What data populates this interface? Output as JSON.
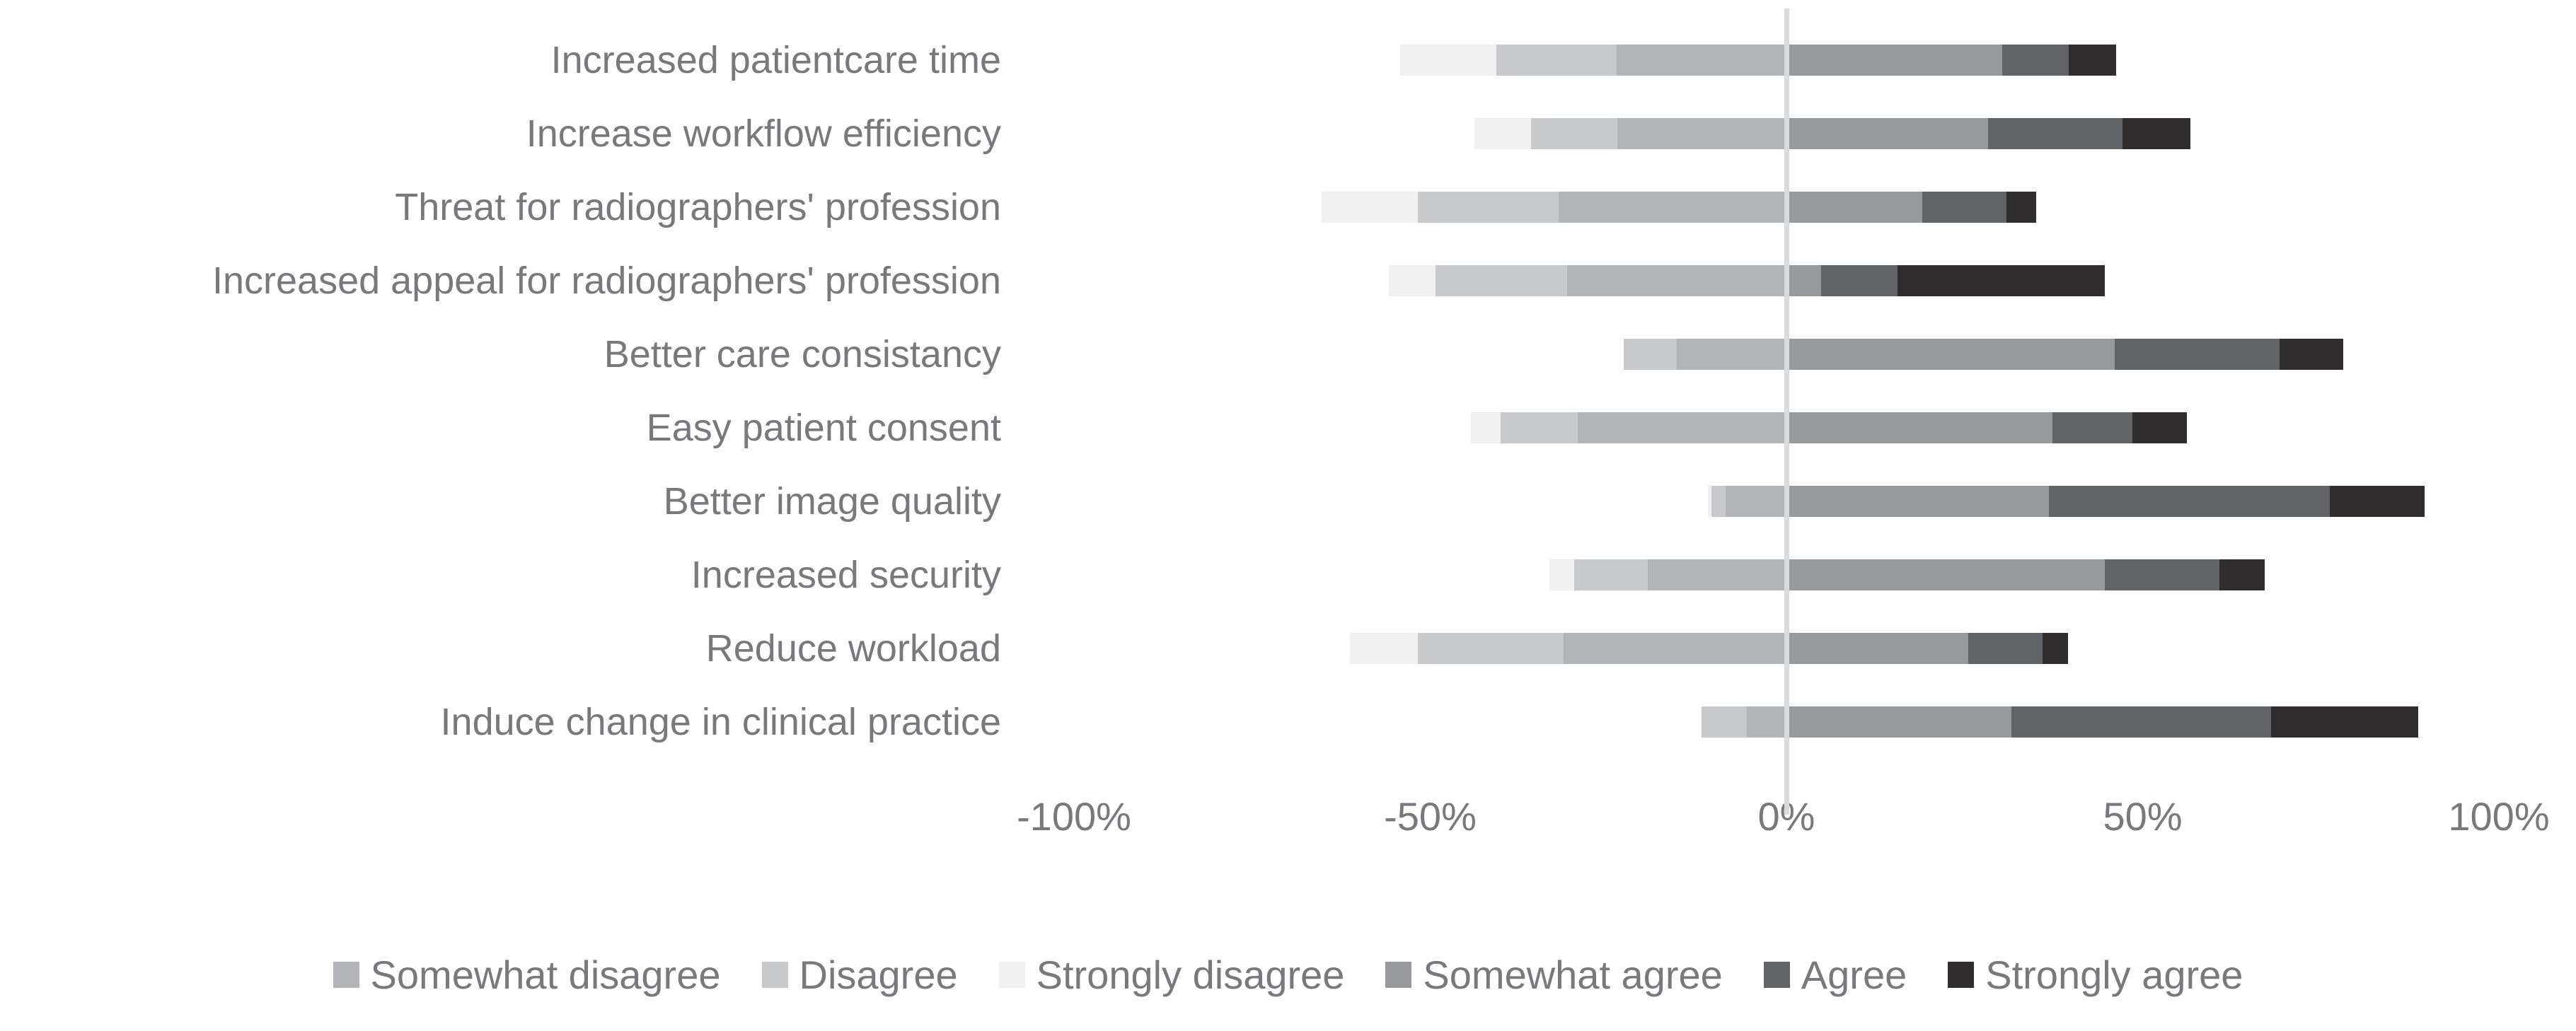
{
  "chart_data": {
    "type": "bar",
    "variant": "diverging-stacked-likert",
    "title": "",
    "unit": "%",
    "categories": [
      "Increased patientcare time",
      "Increase workflow efficiency",
      "Threat for radiographers' profession",
      "Increased appeal for radiographers' profession",
      "Better care consistancy",
      "Easy patient consent",
      "Better image quality",
      "Increased security",
      "Reduce workload",
      "Induce change in clinical practice"
    ],
    "series": [
      {
        "name": "Somewhat disagree",
        "color": "#b2b4b7",
        "side": "negative",
        "stack_order": 1,
        "values": [
          23.8,
          23.7,
          32.0,
          30.8,
          15.4,
          29.3,
          8.5,
          19.5,
          31.3,
          5.6
        ]
      },
      {
        "name": "Disagree",
        "color": "#c7c9cb",
        "side": "negative",
        "stack_order": 2,
        "values": [
          16.9,
          12.1,
          19.7,
          18.5,
          7.4,
          10.8,
          2.0,
          10.3,
          20.4,
          6.3
        ]
      },
      {
        "name": "Strongly disagree",
        "color": "#f1f1f2",
        "side": "negative",
        "stack_order": 3,
        "values": [
          13.5,
          8.0,
          13.5,
          6.5,
          0,
          4.2,
          0.5,
          3.5,
          9.6,
          0
        ]
      },
      {
        "name": "Somewhat agree",
        "color": "#97999c",
        "side": "positive",
        "stack_order": 1,
        "values": [
          30.3,
          28.3,
          19.1,
          4.9,
          46.1,
          37.3,
          36.8,
          44.7,
          25.5,
          31.6
        ]
      },
      {
        "name": "Agree",
        "color": "#626366",
        "side": "positive",
        "stack_order": 2,
        "values": [
          9.3,
          18.9,
          11.8,
          10.7,
          23.1,
          11.3,
          39.5,
          16.1,
          10.4,
          36.4
        ]
      },
      {
        "name": "Strongly agree",
        "color": "#2f2d2e",
        "side": "positive",
        "stack_order": 3,
        "values": [
          6.7,
          9.5,
          4.2,
          29.1,
          9.0,
          7.6,
          13.3,
          6.3,
          3.6,
          20.7
        ]
      }
    ],
    "x_axis": {
      "tick_labels": [
        "-100%",
        "-50%",
        "0%",
        "50%",
        "100%"
      ],
      "tick_values": [
        -100,
        -50,
        0,
        50,
        100
      ],
      "range": [
        -100,
        100
      ]
    },
    "gridline": {
      "at": 0,
      "color": "#d9dadb"
    },
    "legend": [
      "Somewhat disagree",
      "Disagree",
      "Strongly disagree",
      "Somewhat agree",
      "Agree",
      "Strongly agree"
    ],
    "legend_position": "bottom",
    "text_color": "#77797c",
    "background_color": "#ffffff"
  }
}
